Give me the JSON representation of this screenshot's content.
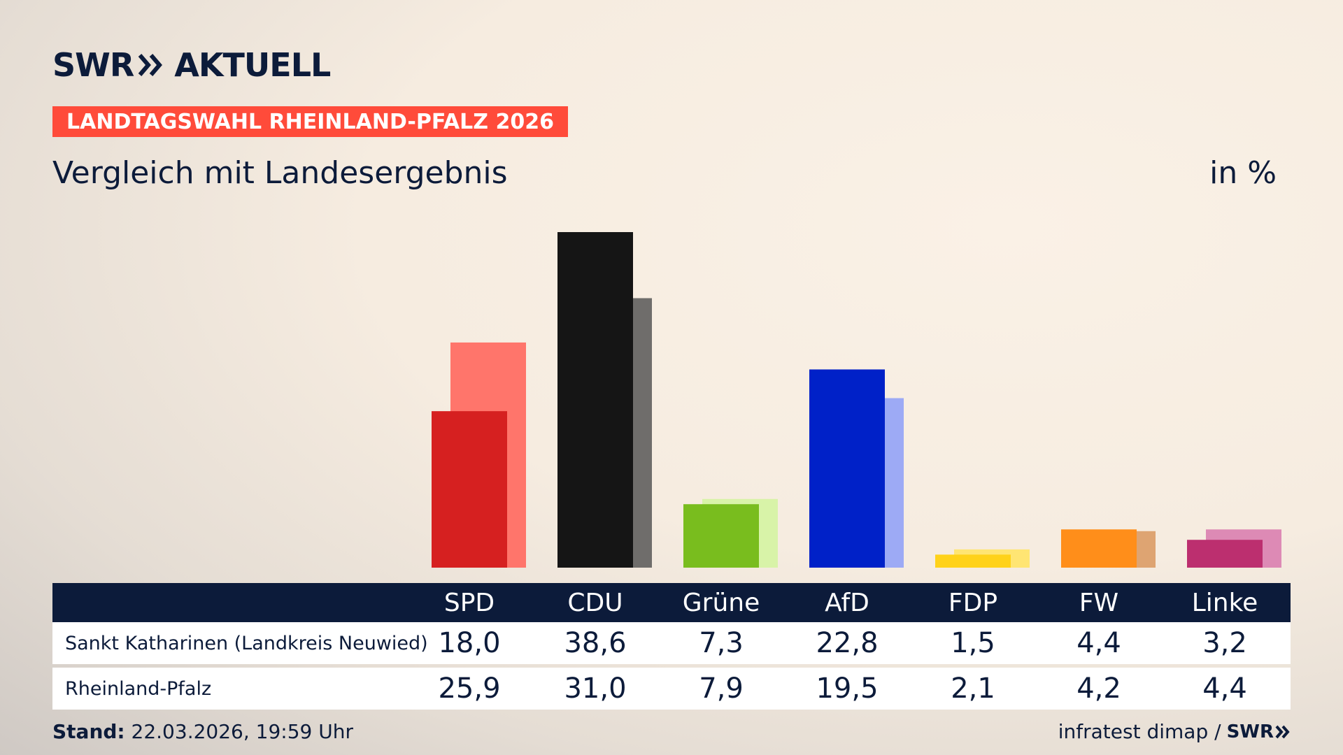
{
  "brand": {
    "logo_text": "SWR",
    "logo_suffix": "AKTUELL"
  },
  "badge": "LANDTAGSWAHL RHEINLAND-PFALZ 2026",
  "subtitle": "Vergleich mit Landesergebnis",
  "unit": "in %",
  "colors": {
    "navy": "#0c1b3a",
    "badge_red": "#ff4b3a",
    "SPD": [
      "#d62020",
      "#ff756b"
    ],
    "CDU": [
      "#151515",
      "#6f6d6b"
    ],
    "Grüne": [
      "#79bd1e",
      "#d8f3a8"
    ],
    "AfD": [
      "#0021c8",
      "#9daaf5"
    ],
    "FDP": [
      "#ffd21a",
      "#ffe573"
    ],
    "FW": [
      "#ff8e1a",
      "#dea472"
    ],
    "Linke": [
      "#bc2f6f",
      "#dd8ab5"
    ]
  },
  "chart_data": {
    "type": "bar",
    "categories": [
      "SPD",
      "CDU",
      "Grüne",
      "AfD",
      "FDP",
      "FW",
      "Linke"
    ],
    "series": [
      {
        "name": "Sankt Katharinen (Landkreis Neuwied)",
        "values": [
          18.0,
          38.6,
          7.3,
          22.8,
          1.5,
          4.4,
          3.2
        ]
      },
      {
        "name": "Rheinland-Pfalz",
        "values": [
          25.9,
          31.0,
          7.9,
          19.5,
          2.1,
          4.2,
          4.4
        ]
      }
    ],
    "ylim": [
      0,
      40
    ]
  },
  "table": {
    "headers": [
      "SPD",
      "CDU",
      "Grüne",
      "AfD",
      "FDP",
      "FW",
      "Linke"
    ],
    "rows": [
      {
        "label": "Sankt Katharinen (Landkreis Neuwied)",
        "values": [
          "18,0",
          "38,6",
          "7,3",
          "22,8",
          "1,5",
          "4,4",
          "3,2"
        ]
      },
      {
        "label": "Rheinland-Pfalz",
        "values": [
          "25,9",
          "31,0",
          "7,9",
          "19,5",
          "2,1",
          "4,2",
          "4,4"
        ]
      }
    ]
  },
  "footer": {
    "stand_label": "Stand:",
    "stand_value": "22.03.2026, 19:59 Uhr",
    "source": "infratest dimap /",
    "source_logo": "SWR"
  }
}
